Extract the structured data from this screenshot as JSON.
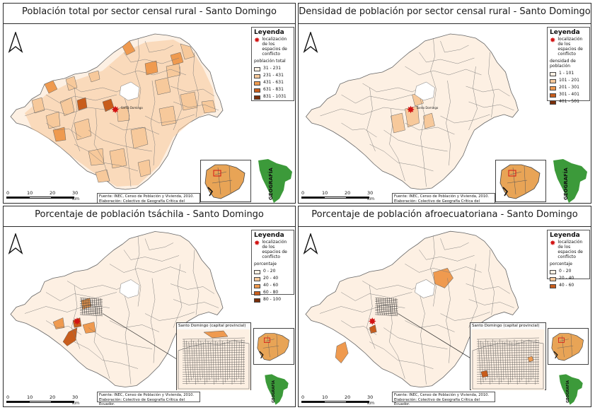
{
  "colors": {
    "c1": "#fdf0e3",
    "c2": "#f7c99b",
    "c3": "#ef9a4f",
    "c4": "#c85d1c",
    "c5": "#7a2e0a",
    "border": "#555555",
    "star": "#d21414",
    "ecuador": "#e8a456",
    "logo_green": "#3c9a3a"
  },
  "common": {
    "legend_title": "Leyenda",
    "conflict_label": "localización de los espacios de conflicto",
    "source_line": "Fuente: INEC, Censo de Población y Vivienda, 2010.",
    "author_line": "Elaboración: Colectivo de Geografía Crítica del Ecuador.",
    "scale_labels": [
      "0",
      "10",
      "20",
      "30 km"
    ],
    "logo_text": "GEOGRAFÍA",
    "city_label": "Santo Domingo"
  },
  "panels": [
    {
      "title": "Población total por sector censal rural - Santo Domingo",
      "legend_heading": "población total",
      "classes": [
        {
          "label": "31 - 231",
          "color": "#fdf0e3"
        },
        {
          "label": "231 - 431",
          "color": "#f7c99b"
        },
        {
          "label": "431 - 631",
          "color": "#ef9a4f"
        },
        {
          "label": "631 - 831",
          "color": "#c85d1c"
        },
        {
          "label": "831 - 1031",
          "color": "#7a2e0a"
        }
      ]
    },
    {
      "title": "Densidad de población por sector censal rural - Santo Domingo",
      "legend_heading": "densidad de población",
      "classes": [
        {
          "label": "1 - 101",
          "color": "#fdf0e3"
        },
        {
          "label": "101 - 201",
          "color": "#f7c99b"
        },
        {
          "label": "201 - 301",
          "color": "#ef9a4f"
        },
        {
          "label": "301 - 401",
          "color": "#c85d1c"
        },
        {
          "label": "401 - 501",
          "color": "#7a2e0a"
        }
      ]
    },
    {
      "title": "Porcentaje de población tsáchila - Santo Domingo",
      "legend_heading": "porcentaje",
      "zoom_title": "Santo Domingo (capital provincial)",
      "classes": [
        {
          "label": "0 - 20",
          "color": "#fdf0e3"
        },
        {
          "label": "20 - 40",
          "color": "#f7c99b"
        },
        {
          "label": "40 - 60",
          "color": "#ef9a4f"
        },
        {
          "label": "60 - 80",
          "color": "#c85d1c"
        },
        {
          "label": "80 - 100",
          "color": "#7a2e0a"
        }
      ]
    },
    {
      "title": "Porcentaje de población afroecuatoriana - Santo Domingo",
      "legend_heading": "porcentaje",
      "zoom_title": "Santo Domingo (capital provincial)",
      "classes": [
        {
          "label": "0 - 20",
          "color": "#fdf0e3"
        },
        {
          "label": "20 - 40",
          "color": "#f7c99b"
        },
        {
          "label": "40 - 60",
          "color": "#c85d1c"
        }
      ]
    }
  ]
}
